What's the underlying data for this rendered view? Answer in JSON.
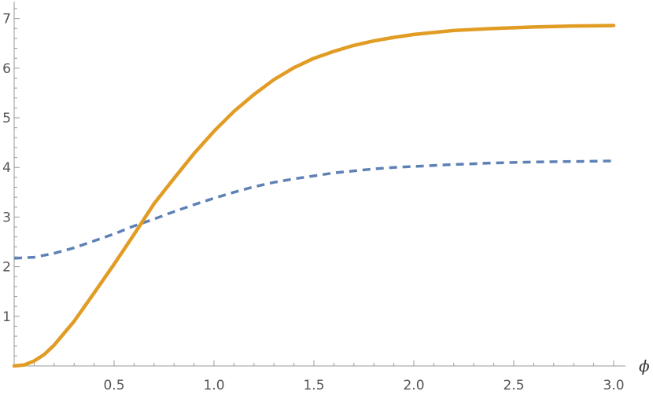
{
  "chart_data": {
    "type": "line",
    "title": "",
    "xlabel": "ϕ",
    "ylabel": "",
    "xlim": [
      0,
      3.0
    ],
    "ylim": [
      0,
      7.2
    ],
    "grid": false,
    "legend": "none",
    "x_ticks": [
      {
        "value": 0.5,
        "label": "0.5"
      },
      {
        "value": 1.0,
        "label": "1.0"
      },
      {
        "value": 1.5,
        "label": "1.5"
      },
      {
        "value": 2.0,
        "label": "2.0"
      },
      {
        "value": 2.5,
        "label": "2.5"
      },
      {
        "value": 3.0,
        "label": "3.0"
      }
    ],
    "y_ticks": [
      {
        "value": 1,
        "label": "1"
      },
      {
        "value": 2,
        "label": "2"
      },
      {
        "value": 3,
        "label": "3"
      },
      {
        "value": 4,
        "label": "4"
      },
      {
        "value": 5,
        "label": "5"
      },
      {
        "value": 6,
        "label": "6"
      },
      {
        "value": 7,
        "label": "7"
      }
    ],
    "series": [
      {
        "color": "#5e81b5",
        "style": "dashed",
        "points": [
          [
            0.0,
            2.17
          ],
          [
            0.1,
            2.19
          ],
          [
            0.2,
            2.27
          ],
          [
            0.3,
            2.38
          ],
          [
            0.4,
            2.52
          ],
          [
            0.5,
            2.66
          ],
          [
            0.6,
            2.82
          ],
          [
            0.7,
            2.96
          ],
          [
            0.8,
            3.11
          ],
          [
            0.9,
            3.25
          ],
          [
            1.0,
            3.38
          ],
          [
            1.1,
            3.5
          ],
          [
            1.2,
            3.61
          ],
          [
            1.3,
            3.7
          ],
          [
            1.4,
            3.77
          ],
          [
            1.5,
            3.83
          ],
          [
            1.6,
            3.89
          ],
          [
            1.7,
            3.93
          ],
          [
            1.8,
            3.97
          ],
          [
            1.9,
            4.0
          ],
          [
            2.0,
            4.02
          ],
          [
            2.2,
            4.06
          ],
          [
            2.4,
            4.09
          ],
          [
            2.6,
            4.11
          ],
          [
            2.8,
            4.12
          ],
          [
            3.0,
            4.13
          ]
        ]
      },
      {
        "color": "#e19c24",
        "style": "solid",
        "points": [
          [
            0.0,
            0.0
          ],
          [
            0.05,
            0.02
          ],
          [
            0.1,
            0.1
          ],
          [
            0.15,
            0.23
          ],
          [
            0.2,
            0.42
          ],
          [
            0.3,
            0.9
          ],
          [
            0.4,
            1.47
          ],
          [
            0.5,
            2.05
          ],
          [
            0.6,
            2.65
          ],
          [
            0.7,
            3.27
          ],
          [
            0.8,
            3.78
          ],
          [
            0.9,
            4.28
          ],
          [
            1.0,
            4.73
          ],
          [
            1.1,
            5.13
          ],
          [
            1.2,
            5.47
          ],
          [
            1.3,
            5.77
          ],
          [
            1.4,
            6.01
          ],
          [
            1.5,
            6.2
          ],
          [
            1.6,
            6.34
          ],
          [
            1.7,
            6.46
          ],
          [
            1.8,
            6.55
          ],
          [
            1.9,
            6.62
          ],
          [
            2.0,
            6.68
          ],
          [
            2.2,
            6.76
          ],
          [
            2.4,
            6.8
          ],
          [
            2.6,
            6.83
          ],
          [
            2.8,
            6.85
          ],
          [
            3.0,
            6.86
          ]
        ]
      }
    ]
  }
}
